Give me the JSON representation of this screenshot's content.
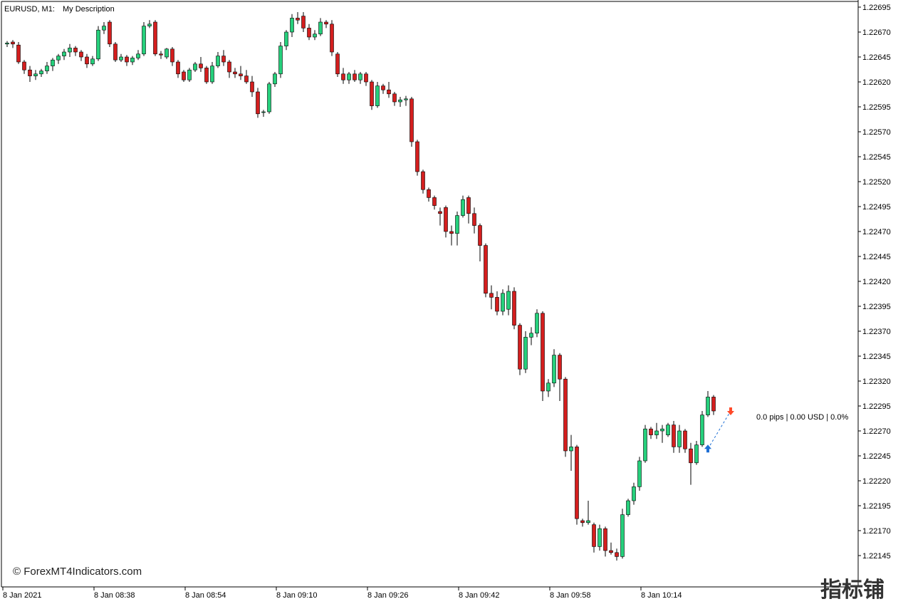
{
  "header": {
    "symbol_timeframe": "EURUSD, M1:",
    "description": "My Description"
  },
  "pnl_label": "0.0 pips | 0.00 USD | 0.0%",
  "watermark": "© ForexMT4Indicators.com",
  "watermark_cn": "指标铺",
  "colors": {
    "bull": "#26d07c",
    "bear": "#d41e1e",
    "wick": "#000000",
    "axis": "#000000",
    "buy_arrow": "#1e6fd4",
    "sell_arrow": "#ff4a2a",
    "trade_line": "#1e6fd4"
  },
  "chart_data": {
    "type": "candlestick",
    "y_range": [
      1.2213,
      1.227
    ],
    "y_ticks": [
      "1.22695",
      "1.22670",
      "1.22645",
      "1.22620",
      "1.22595",
      "1.22570",
      "1.22545",
      "1.22520",
      "1.22495",
      "1.22470",
      "1.22445",
      "1.22420",
      "1.22395",
      "1.22370",
      "1.22345",
      "1.22320",
      "1.22295",
      "1.22270",
      "1.22245",
      "1.22220",
      "1.22195",
      "1.22170",
      "1.22145"
    ],
    "x_ticks": [
      "8 Jan 2021",
      "8 Jan 08:38",
      "8 Jan 08:54",
      "8 Jan 09:10",
      "8 Jan 09:26",
      "8 Jan 09:42",
      "8 Jan 09:58",
      "8 Jan 10:14"
    ],
    "candles": [
      [
        1.22658,
        1.22661,
        1.22655,
        1.22659
      ],
      [
        1.2266,
        1.22662,
        1.22654,
        1.22658
      ],
      [
        1.22657,
        1.2266,
        1.22638,
        1.2264
      ],
      [
        1.2264,
        1.22642,
        1.22628,
        1.22632
      ],
      [
        1.22632,
        1.22636,
        1.2262,
        1.22626
      ],
      [
        1.22626,
        1.22632,
        1.22622,
        1.22628
      ],
      [
        1.22628,
        1.22633,
        1.22625,
        1.22631
      ],
      [
        1.22631,
        1.2264,
        1.22628,
        1.22636
      ],
      [
        1.22636,
        1.22644,
        1.22631,
        1.22642
      ],
      [
        1.22642,
        1.22648,
        1.22638,
        1.22646
      ],
      [
        1.22646,
        1.22653,
        1.22642,
        1.2265
      ],
      [
        1.2265,
        1.22658,
        1.22645,
        1.22654
      ],
      [
        1.22654,
        1.22656,
        1.22646,
        1.2265
      ],
      [
        1.2265,
        1.22652,
        1.22641,
        1.22645
      ],
      [
        1.22645,
        1.22648,
        1.22634,
        1.22638
      ],
      [
        1.22638,
        1.22646,
        1.22636,
        1.22643
      ],
      [
        1.22643,
        1.22676,
        1.22641,
        1.22672
      ],
      [
        1.22672,
        1.2268,
        1.22668,
        1.22676
      ],
      [
        1.2268,
        1.22682,
        1.22655,
        1.22658
      ],
      [
        1.22658,
        1.2266,
        1.2264,
        1.22642
      ],
      [
        1.22642,
        1.22648,
        1.2264,
        1.22645
      ],
      [
        1.22645,
        1.22647,
        1.22636,
        1.2264
      ],
      [
        1.2264,
        1.22646,
        1.22637,
        1.22644
      ],
      [
        1.22644,
        1.22652,
        1.22642,
        1.22648
      ],
      [
        1.22648,
        1.2268,
        1.22646,
        1.22676
      ],
      [
        1.22676,
        1.22682,
        1.22674,
        1.22678
      ],
      [
        1.2268,
        1.22682,
        1.22646,
        1.22648
      ],
      [
        1.22648,
        1.22651,
        1.22643,
        1.22647
      ],
      [
        1.22645,
        1.22654,
        1.22643,
        1.22653
      ],
      [
        1.22653,
        1.22655,
        1.22636,
        1.2264
      ],
      [
        1.2264,
        1.22642,
        1.22624,
        1.22628
      ],
      [
        1.2263,
        1.22632,
        1.2262,
        1.22622
      ],
      [
        1.22622,
        1.22634,
        1.2262,
        1.22632
      ],
      [
        1.22632,
        1.2264,
        1.2263,
        1.22638
      ],
      [
        1.22638,
        1.22645,
        1.2263,
        1.22634
      ],
      [
        1.22634,
        1.22636,
        1.22618,
        1.2262
      ],
      [
        1.2262,
        1.2264,
        1.22618,
        1.22636
      ],
      [
        1.22636,
        1.2265,
        1.22634,
        1.22646
      ],
      [
        1.22646,
        1.22652,
        1.22636,
        1.2264
      ],
      [
        1.2264,
        1.22642,
        1.22624,
        1.2263
      ],
      [
        1.2263,
        1.22634,
        1.22624,
        1.22628
      ],
      [
        1.22628,
        1.22636,
        1.22622,
        1.22626
      ],
      [
        1.22626,
        1.22632,
        1.22618,
        1.2262
      ],
      [
        1.2262,
        1.22626,
        1.22605,
        1.2261
      ],
      [
        1.2261,
        1.22614,
        1.22584,
        1.22588
      ],
      [
        1.2259,
        1.22592,
        1.22585,
        1.2259
      ],
      [
        1.2259,
        1.2262,
        1.22588,
        1.22618
      ],
      [
        1.22618,
        1.2263,
        1.22615,
        1.22628
      ],
      [
        1.22628,
        1.2266,
        1.22624,
        1.22656
      ],
      [
        1.22656,
        1.22672,
        1.22652,
        1.2267
      ],
      [
        1.2267,
        1.22688,
        1.22665,
        1.22684
      ],
      [
        1.22684,
        1.2269,
        1.22678,
        1.22682
      ],
      [
        1.22686,
        1.2269,
        1.2267,
        1.22674
      ],
      [
        1.22674,
        1.22678,
        1.22662,
        1.22665
      ],
      [
        1.22665,
        1.22672,
        1.22662,
        1.22668
      ],
      [
        1.22668,
        1.22684,
        1.22666,
        1.2268
      ],
      [
        1.2268,
        1.22682,
        1.22674,
        1.22678
      ],
      [
        1.22678,
        1.22682,
        1.22646,
        1.2265
      ],
      [
        1.22648,
        1.2265,
        1.22625,
        1.22628
      ],
      [
        1.22628,
        1.22634,
        1.22618,
        1.22622
      ],
      [
        1.22622,
        1.2263,
        1.22618,
        1.22628
      ],
      [
        1.22628,
        1.22632,
        1.2262,
        1.22622
      ],
      [
        1.22622,
        1.2263,
        1.22618,
        1.22628
      ],
      [
        1.22628,
        1.2263,
        1.22616,
        1.2262
      ],
      [
        1.2262,
        1.22622,
        1.22592,
        1.22596
      ],
      [
        1.22596,
        1.2262,
        1.22594,
        1.22616
      ],
      [
        1.22616,
        1.22618,
        1.22608,
        1.22612
      ],
      [
        1.22612,
        1.2262,
        1.22604,
        1.22608
      ],
      [
        1.22608,
        1.2261,
        1.22596,
        1.226
      ],
      [
        1.226,
        1.22605,
        1.22595,
        1.22602
      ],
      [
        1.22602,
        1.22606,
        1.22596,
        1.22603
      ],
      [
        1.22603,
        1.22605,
        1.22555,
        1.2256
      ],
      [
        1.2256,
        1.22562,
        1.22526,
        1.2253
      ],
      [
        1.2253,
        1.22532,
        1.22508,
        1.22512
      ],
      [
        1.22512,
        1.22514,
        1.225,
        1.22504
      ],
      [
        1.22504,
        1.22506,
        1.22492,
        1.22496
      ],
      [
        1.2249,
        1.22494,
        1.22476,
        1.22488
      ],
      [
        1.22494,
        1.22496,
        1.22464,
        1.2247
      ],
      [
        1.2247,
        1.22476,
        1.22456,
        1.22468
      ],
      [
        1.22468,
        1.2249,
        1.22456,
        1.22486
      ],
      [
        1.22486,
        1.22506,
        1.22484,
        1.22502
      ],
      [
        1.22504,
        1.22506,
        1.22478,
        1.22488
      ],
      [
        1.22488,
        1.22494,
        1.22468,
        1.22476
      ],
      [
        1.22476,
        1.22478,
        1.2244,
        1.22456
      ],
      [
        1.22456,
        1.22458,
        1.22404,
        1.22408
      ],
      [
        1.22408,
        1.22416,
        1.22392,
        1.22404
      ],
      [
        1.22404,
        1.2241,
        1.22386,
        1.2239
      ],
      [
        1.2239,
        1.22412,
        1.22386,
        1.22408
      ],
      [
        1.22392,
        1.22416,
        1.22386,
        1.2241
      ],
      [
        1.2241,
        1.22414,
        1.22372,
        1.22376
      ],
      [
        1.22376,
        1.22378,
        1.22326,
        1.22332
      ],
      [
        1.22332,
        1.2237,
        1.22328,
        1.22364
      ],
      [
        1.22364,
        1.22374,
        1.22356,
        1.22368
      ],
      [
        1.22368,
        1.22392,
        1.22364,
        1.22388
      ],
      [
        1.22388,
        1.2239,
        1.223,
        1.2231
      ],
      [
        1.2231,
        1.22322,
        1.22304,
        1.22318
      ],
      [
        1.22318,
        1.22352,
        1.22314,
        1.22346
      ],
      [
        1.22346,
        1.22348,
        1.223,
        1.22322
      ],
      [
        1.22322,
        1.22324,
        1.22244,
        1.2225
      ],
      [
        1.2225,
        1.22266,
        1.2223,
        1.22254
      ],
      [
        1.22254,
        1.22256,
        1.22176,
        1.22182
      ],
      [
        1.2218,
        1.22182,
        1.22174,
        1.22178
      ],
      [
        1.22178,
        1.222,
        1.22176,
        1.2218
      ],
      [
        1.22176,
        1.22178,
        1.22148,
        1.22154
      ],
      [
        1.22154,
        1.22176,
        1.2215,
        1.22172
      ],
      [
        1.22172,
        1.22174,
        1.22144,
        1.2215
      ],
      [
        1.2215,
        1.22158,
        1.22146,
        1.22148
      ],
      [
        1.22148,
        1.22152,
        1.2214,
        1.22144
      ],
      [
        1.22144,
        1.22192,
        1.22142,
        1.22186
      ],
      [
        1.22186,
        1.22202,
        1.22184,
        1.222
      ],
      [
        1.222,
        1.22218,
        1.22196,
        1.22214
      ],
      [
        1.22214,
        1.22244,
        1.2221,
        1.2224
      ],
      [
        1.2224,
        1.22276,
        1.22238,
        1.22272
      ],
      [
        1.22272,
        1.22274,
        1.22262,
        1.22266
      ],
      [
        1.22266,
        1.22278,
        1.22262,
        1.2227
      ],
      [
        1.2227,
        1.22276,
        1.22258,
        1.22272
      ],
      [
        1.22266,
        1.22278,
        1.22264,
        1.22276
      ],
      [
        1.22276,
        1.2228,
        1.22248,
        1.22254
      ],
      [
        1.22254,
        1.22276,
        1.22248,
        1.2227
      ],
      [
        1.2227,
        1.22272,
        1.22248,
        1.22252
      ],
      [
        1.22252,
        1.22258,
        1.22216,
        1.22238
      ],
      [
        1.22238,
        1.2226,
        1.22236,
        1.22256
      ],
      [
        1.22256,
        1.2229,
        1.22254,
        1.22286
      ],
      [
        1.22286,
        1.2231,
        1.22284,
        1.22304
      ],
      [
        1.22304,
        1.22306,
        1.22286,
        1.2229
      ]
    ],
    "grid": false
  }
}
